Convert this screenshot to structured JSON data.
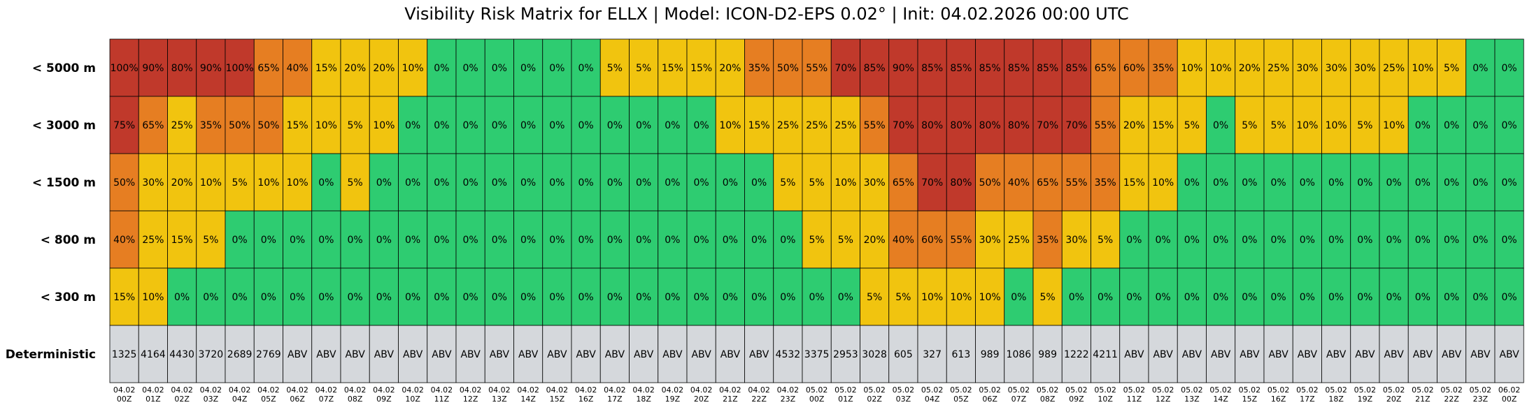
{
  "chart_data": {
    "type": "heatmap",
    "title": "Visibility Risk Matrix for ELLX | Model: ICON-D2-EPS 0.02° | Init: 04.02.2026 00:00 UTC",
    "rows": [
      "< 5000 m",
      "< 3000 m",
      "< 1500 m",
      "< 800 m",
      "< 300 m",
      "Deterministic"
    ],
    "x_date": [
      "04.02",
      "04.02",
      "04.02",
      "04.02",
      "04.02",
      "04.02",
      "04.02",
      "04.02",
      "04.02",
      "04.02",
      "04.02",
      "04.02",
      "04.02",
      "04.02",
      "04.02",
      "04.02",
      "04.02",
      "04.02",
      "04.02",
      "04.02",
      "04.02",
      "04.02",
      "04.02",
      "04.02",
      "05.02",
      "05.02",
      "05.02",
      "05.02",
      "05.02",
      "05.02",
      "05.02",
      "05.02",
      "05.02",
      "05.02",
      "05.02",
      "05.02",
      "05.02",
      "05.02",
      "05.02",
      "05.02",
      "05.02",
      "05.02",
      "05.02",
      "05.02",
      "05.02",
      "05.02",
      "05.02",
      "05.02",
      "06.02"
    ],
    "x_hour": [
      "00Z",
      "01Z",
      "02Z",
      "03Z",
      "04Z",
      "05Z",
      "06Z",
      "07Z",
      "08Z",
      "09Z",
      "10Z",
      "11Z",
      "12Z",
      "13Z",
      "14Z",
      "15Z",
      "16Z",
      "17Z",
      "18Z",
      "19Z",
      "20Z",
      "21Z",
      "22Z",
      "23Z",
      "00Z",
      "01Z",
      "02Z",
      "03Z",
      "04Z",
      "05Z",
      "06Z",
      "07Z",
      "08Z",
      "09Z",
      "10Z",
      "11Z",
      "12Z",
      "13Z",
      "14Z",
      "15Z",
      "16Z",
      "17Z",
      "18Z",
      "19Z",
      "20Z",
      "21Z",
      "22Z",
      "23Z",
      "00Z"
    ],
    "probabilities": [
      [
        100,
        90,
        80,
        90,
        100,
        65,
        40,
        15,
        20,
        20,
        10,
        0,
        0,
        0,
        0,
        0,
        0,
        5,
        5,
        15,
        15,
        20,
        35,
        50,
        55,
        70,
        85,
        90,
        85,
        85,
        85,
        85,
        85,
        85,
        65,
        60,
        35,
        10,
        10,
        20,
        25,
        30,
        30,
        30,
        25,
        10,
        5,
        0,
        0
      ],
      [
        75,
        65,
        25,
        35,
        50,
        50,
        15,
        10,
        5,
        10,
        0,
        0,
        0,
        0,
        0,
        0,
        0,
        0,
        0,
        0,
        0,
        10,
        15,
        25,
        25,
        25,
        55,
        70,
        80,
        80,
        80,
        80,
        70,
        70,
        55,
        20,
        15,
        5,
        0,
        5,
        5,
        10,
        10,
        5,
        10,
        0,
        0,
        0,
        0
      ],
      [
        50,
        30,
        20,
        10,
        5,
        10,
        10,
        0,
        5,
        0,
        0,
        0,
        0,
        0,
        0,
        0,
        0,
        0,
        0,
        0,
        0,
        0,
        0,
        5,
        5,
        10,
        30,
        65,
        70,
        80,
        50,
        40,
        65,
        55,
        35,
        15,
        10,
        0,
        0,
        0,
        0,
        0,
        0,
        0,
        0,
        0,
        0,
        0,
        0
      ],
      [
        40,
        25,
        15,
        5,
        0,
        0,
        0,
        0,
        0,
        0,
        0,
        0,
        0,
        0,
        0,
        0,
        0,
        0,
        0,
        0,
        0,
        0,
        0,
        0,
        5,
        5,
        20,
        40,
        60,
        55,
        30,
        25,
        35,
        30,
        5,
        0,
        0,
        0,
        0,
        0,
        0,
        0,
        0,
        0,
        0,
        0,
        0,
        0,
        0
      ],
      [
        15,
        10,
        0,
        0,
        0,
        0,
        0,
        0,
        0,
        0,
        0,
        0,
        0,
        0,
        0,
        0,
        0,
        0,
        0,
        0,
        0,
        0,
        0,
        0,
        0,
        0,
        5,
        5,
        10,
        10,
        10,
        0,
        5,
        0,
        0,
        0,
        0,
        0,
        0,
        0,
        0,
        0,
        0,
        0,
        0,
        0,
        0,
        0,
        0
      ]
    ],
    "deterministic": [
      "1325",
      "4164",
      "4430",
      "3720",
      "2689",
      "2769",
      "ABV",
      "ABV",
      "ABV",
      "ABV",
      "ABV",
      "ABV",
      "ABV",
      "ABV",
      "ABV",
      "ABV",
      "ABV",
      "ABV",
      "ABV",
      "ABV",
      "ABV",
      "ABV",
      "ABV",
      "4532",
      "3375",
      "2953",
      "3028",
      "605",
      "327",
      "613",
      "989",
      "1086",
      "989",
      "1222",
      "4211",
      "ABV",
      "ABV",
      "ABV",
      "ABV",
      "ABV",
      "ABV",
      "ABV",
      "ABV",
      "ABV",
      "ABV",
      "ABV",
      "ABV",
      "ABV",
      "ABV"
    ],
    "value_suffix": "%",
    "color_scale": [
      {
        "min": 0,
        "max": 0,
        "color": "#2ecc71"
      },
      {
        "min": 1,
        "max": 30,
        "color": "#f1c40f"
      },
      {
        "min": 31,
        "max": 65,
        "color": "#e67e22"
      },
      {
        "min": 66,
        "max": 100,
        "color": "#c0392b"
      }
    ],
    "deterministic_color": "#d5d8dc"
  }
}
